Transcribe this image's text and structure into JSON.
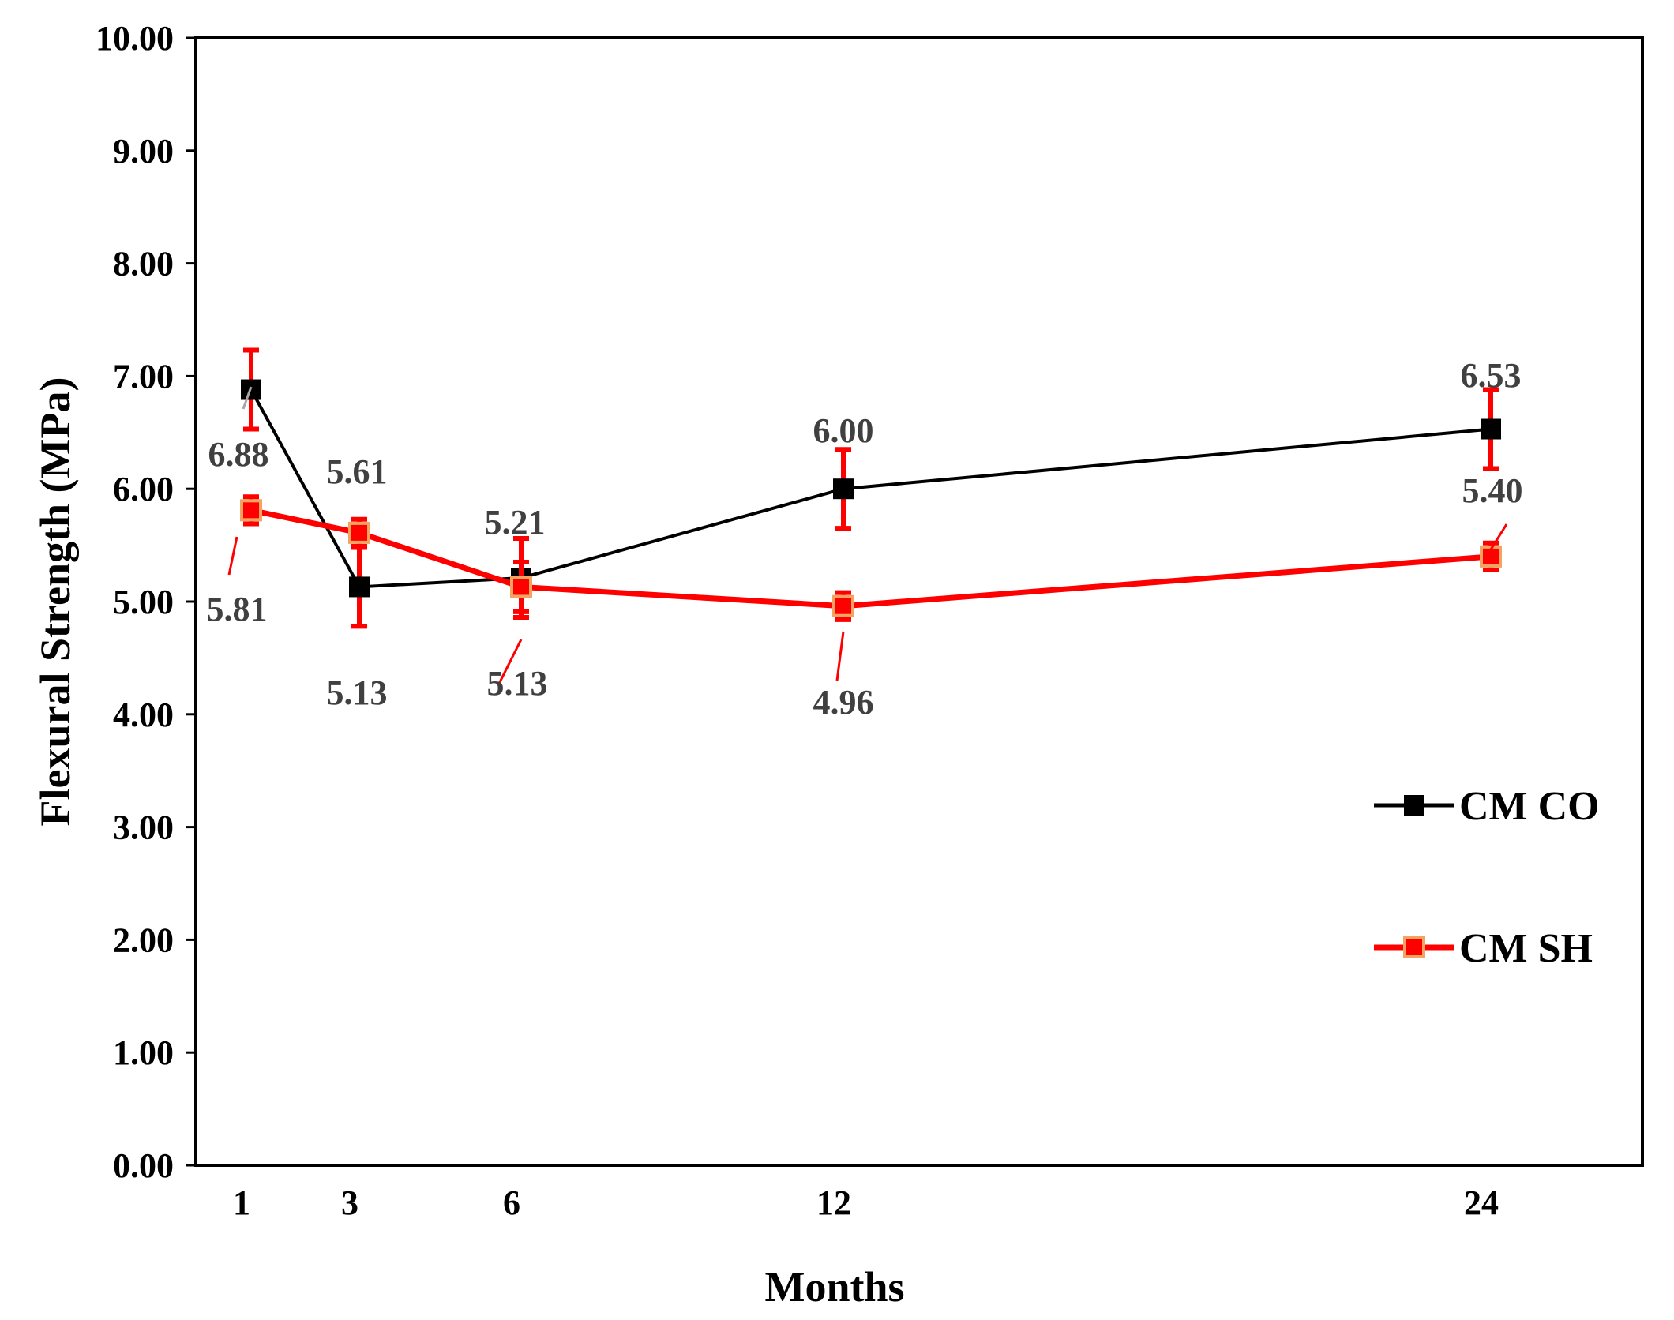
{
  "chart_data": {
    "type": "line",
    "title": "",
    "xlabel": "Months",
    "ylabel": "Flexural Strength (MPa)",
    "categories": [
      "1",
      "3",
      "6",
      "12",
      "24"
    ],
    "x": [
      1,
      3,
      6,
      12,
      24
    ],
    "ylim": [
      0,
      10
    ],
    "yticks": [
      "0.00",
      "1.00",
      "2.00",
      "3.00",
      "4.00",
      "5.00",
      "6.00",
      "7.00",
      "8.00",
      "9.00",
      "10.00"
    ],
    "grid": false,
    "legend_position": "right",
    "series": [
      {
        "name": "CM CO",
        "color": "#000000",
        "marker_fill": "#000000",
        "values": [
          6.88,
          5.13,
          5.21,
          6.0,
          6.53
        ],
        "labels": [
          "6.88",
          "5.13",
          "5.21",
          "6.00",
          "6.53"
        ],
        "error": [
          0.35,
          0.35,
          0.35,
          0.35,
          0.35
        ],
        "error_color": "#ff0000"
      },
      {
        "name": "CM SH",
        "color": "#ff0000",
        "marker_fill": "#ff0000",
        "marker_edge": "#f4a460",
        "values": [
          5.81,
          5.61,
          5.13,
          4.96,
          5.4
        ],
        "labels": [
          "5.81",
          "5.61",
          "5.13",
          "4.96",
          "5.40"
        ],
        "error": [
          0.12,
          0.12,
          0.22,
          0.12,
          0.12
        ],
        "error_color": "#ff0000"
      }
    ]
  }
}
